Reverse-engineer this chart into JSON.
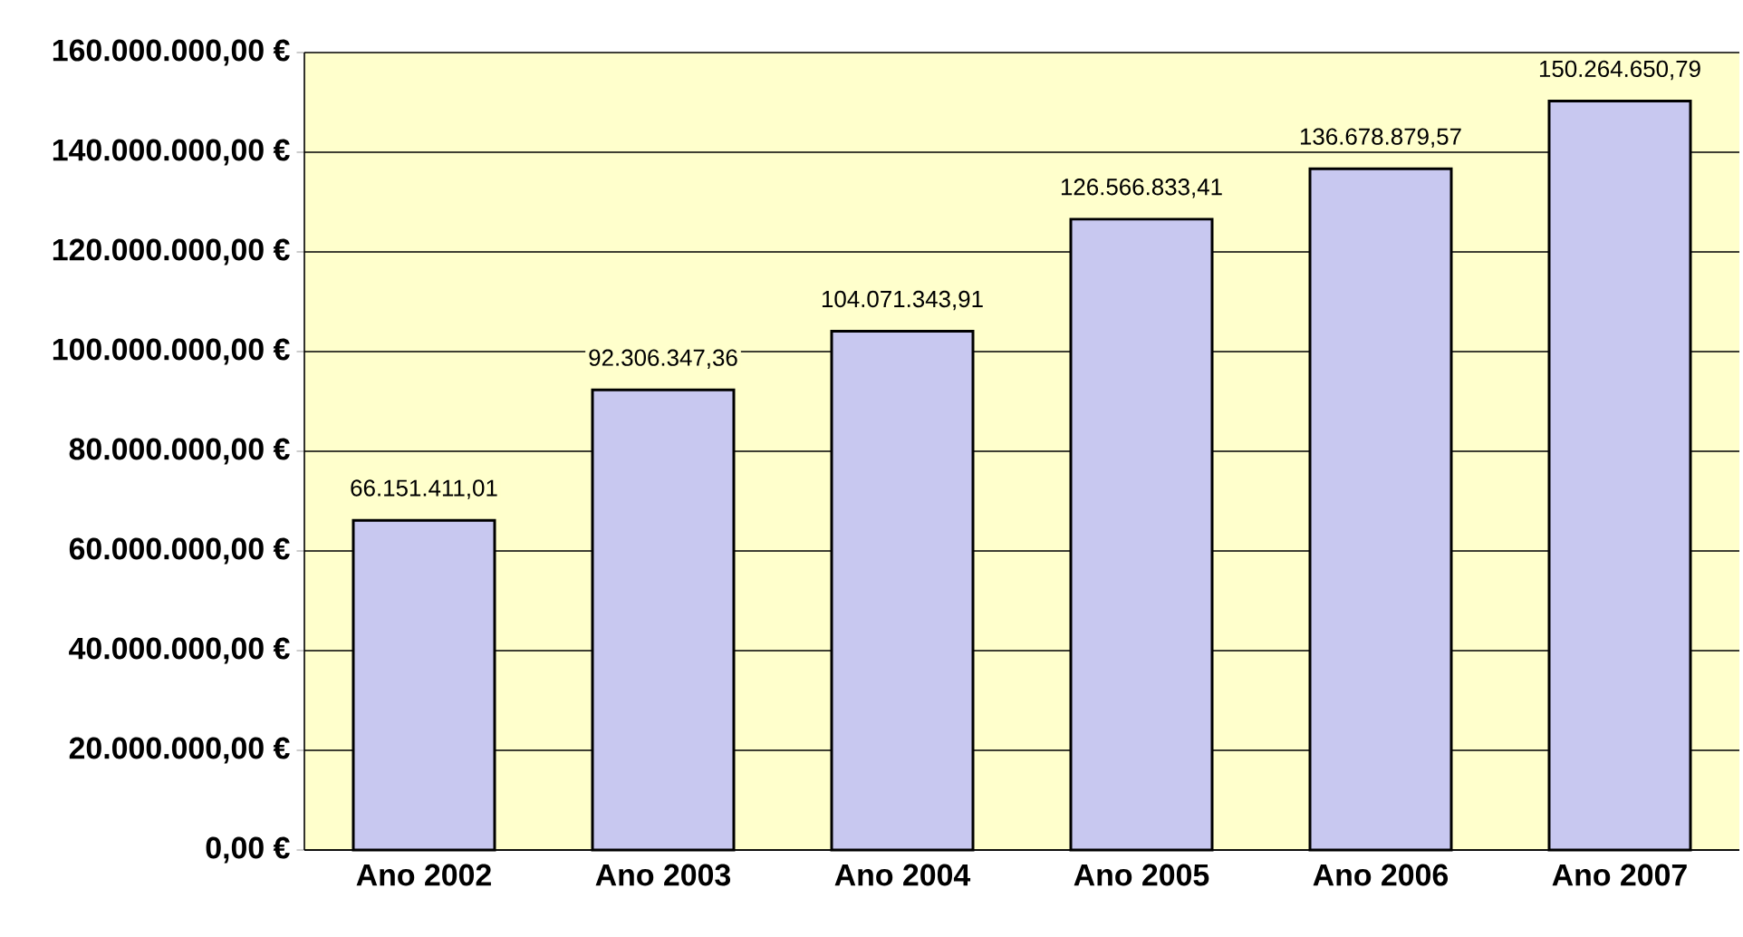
{
  "chart_data": {
    "type": "bar",
    "categories": [
      "Ano 2002",
      "Ano 2003",
      "Ano 2004",
      "Ano 2005",
      "Ano 2006",
      "Ano 2007"
    ],
    "values": [
      66151411.01,
      92306347.36,
      104071343.91,
      126566833.41,
      136678879.57,
      150264650.79
    ],
    "value_labels": [
      "66.151.411,01",
      "92.306.347,36",
      "104.071.343,91",
      "126.566.833,41",
      "136.678.879,57",
      "150.264.650,79"
    ],
    "color": "#c8c8f0",
    "ylim": [
      0,
      160000000
    ],
    "yticks": [
      {
        "value": 0,
        "label": "0,00 €"
      },
      {
        "value": 20000000,
        "label": "20.000.000,00 €"
      },
      {
        "value": 40000000,
        "label": "40.000.000,00 €"
      },
      {
        "value": 60000000,
        "label": "60.000.000,00 €"
      },
      {
        "value": 80000000,
        "label": "80.000.000,00 €"
      },
      {
        "value": 100000000,
        "label": "100.000.000,00 €"
      },
      {
        "value": 120000000,
        "label": "120.000.000,00 €"
      },
      {
        "value": 140000000,
        "label": "140.000.000,00 €"
      },
      {
        "value": 160000000,
        "label": "160.000.000,00 €"
      }
    ],
    "grid": "y"
  }
}
